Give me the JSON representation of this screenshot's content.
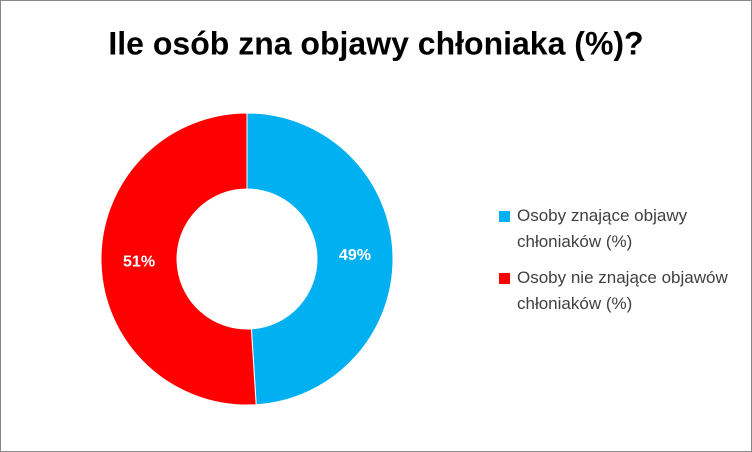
{
  "chart_data": {
    "type": "doughnut",
    "title": "Ile osób zna objawy chłoniaka (%)?",
    "categories": [
      "Osoby znające objawy chłoniaków (%)",
      "Osoby nie znające objawów chłoniaków (%)"
    ],
    "values": [
      49,
      51
    ],
    "value_labels": [
      "49%",
      "51%"
    ],
    "colors": [
      "#00b0f0",
      "#ff0000"
    ],
    "legend": "right"
  }
}
